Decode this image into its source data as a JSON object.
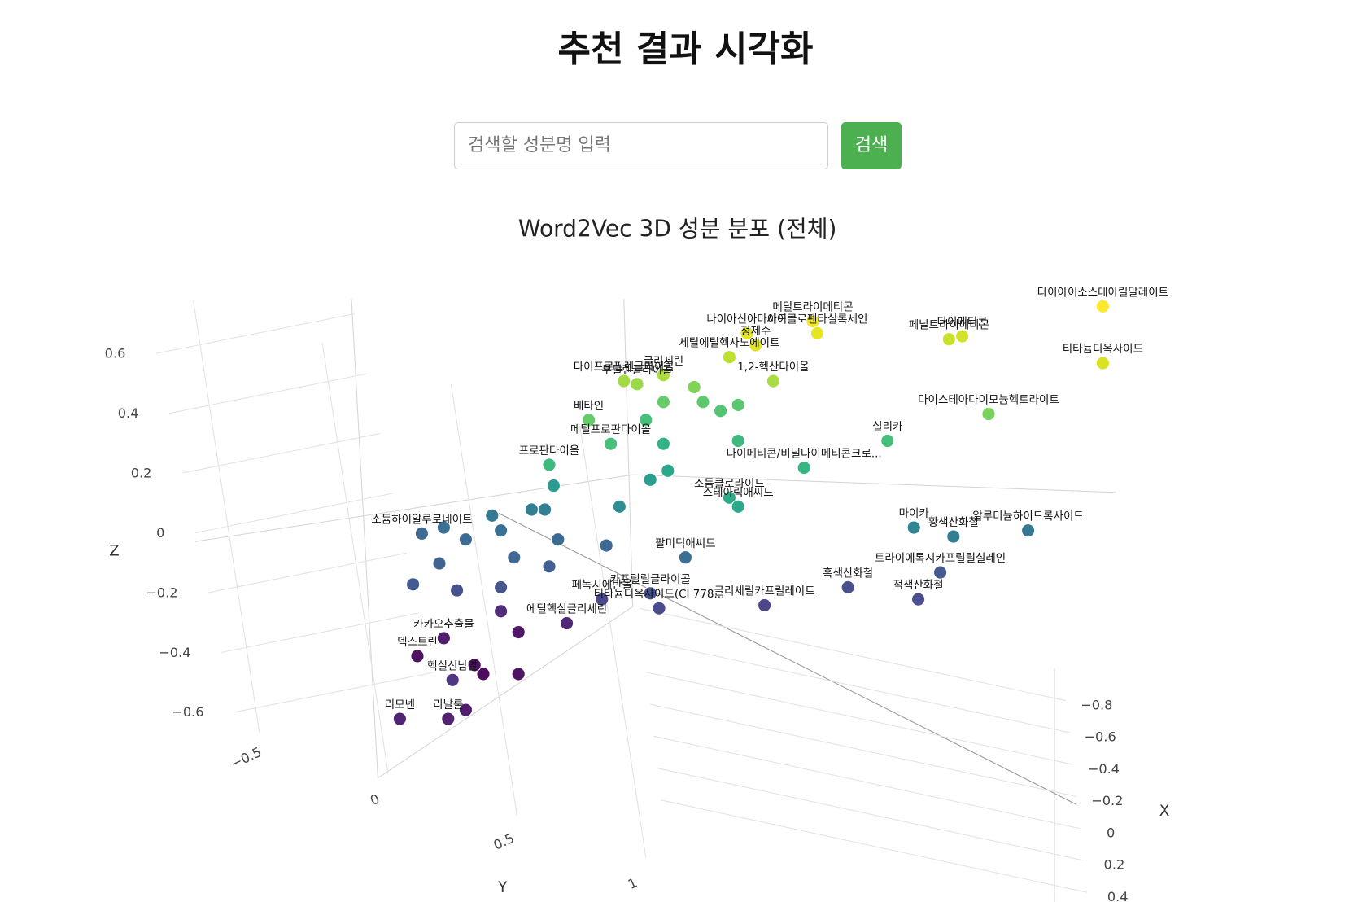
{
  "header": {
    "title": "추천 결과 시각화"
  },
  "search": {
    "placeholder": "검색할 성분명 입력",
    "button": "검색"
  },
  "chart_data": {
    "type": "scatter3d",
    "title": "Word2Vec 3D 성분 분포 (전체)",
    "xlabel": "X",
    "ylabel": "Y",
    "zlabel": "Z",
    "xticks": [
      {
        "value": -0.8,
        "label": "−0.8"
      },
      {
        "value": -0.6,
        "label": "−0.6"
      },
      {
        "value": -0.4,
        "label": "−0.4"
      },
      {
        "value": -0.2,
        "label": "−0.2"
      },
      0,
      0.2,
      0.4
    ],
    "yticks": [
      {
        "value": -0.5,
        "label": "−0.5"
      },
      0,
      0.5,
      1
    ],
    "zticks": [
      {
        "value": -0.6,
        "label": "−0.6"
      },
      {
        "value": -0.4,
        "label": "−0.4"
      },
      {
        "value": -0.2,
        "label": "−0.2"
      },
      0,
      0.2,
      0.4,
      0.6
    ],
    "series": [
      {
        "labels": [
          "다이아이소스테아릴말레이트",
          "티타늄디옥사이드",
          "페닐트라이메티콘",
          "다이메티콘",
          "메틸트라이메티콘",
          "사이클로펜타실록세인",
          "나이아신아마이드",
          "정제수",
          "세틸에틸헥사노에이트",
          "1,2-헥산다이올",
          "글리세린",
          "다이프로필렌글라이콜",
          "부틸렌글라이콜",
          "베타인",
          "다이스테아다이모늄헥토라이트",
          "실리카",
          "메틸프로판다이올",
          "다이메티콘/비닐다이메티콘크로...",
          "프로판다이올",
          "소듐클로라이드",
          "스테아릭애씨드",
          "마이카",
          "황색산화철",
          "알루미늄하이드록사이드",
          "트라이에톡시카프릴릴실레인",
          "흑색산화철",
          "적색산화철",
          "팔미틱애씨드",
          "카프릴릴글라이콜",
          "티타늄디옥사이드(CI 778...",
          "글리세릴카프릴레이트",
          "페녹시에탄올",
          "에틸헥실글리세린",
          "카카오추출물",
          "소듐하이알루로네이트",
          "덱스트린",
          "헥실신남알",
          "리모넨",
          "리날룰"
        ],
        "x": [
          -0.6,
          -0.6,
          -0.6,
          -0.6,
          -0.2,
          -0.2,
          -0.2,
          -0.2,
          -0.2,
          -0.2,
          -0.2,
          -0.2,
          -0.2,
          0.1,
          -0.6,
          -0.6,
          0.1,
          -0.2,
          0.1,
          -0.2,
          -0.2,
          -0.6,
          -0.6,
          -0.6,
          -0.6,
          -0.6,
          -0.6,
          -0.2,
          -0.2,
          -0.2,
          -0.2,
          0.1,
          0.1,
          0.1,
          0.1,
          0.1,
          0.1,
          0.1,
          0.1
        ],
        "y": [
          0.97,
          0.97,
          0.62,
          0.65,
          0.71,
          0.72,
          0.56,
          0.58,
          0.52,
          0.62,
          0.37,
          0.28,
          0.31,
          0.5,
          0.71,
          0.48,
          0.55,
          0.69,
          0.41,
          0.52,
          0.54,
          0.54,
          0.63,
          0.8,
          0.6,
          0.39,
          0.55,
          0.42,
          0.34,
          0.36,
          0.6,
          0.53,
          0.45,
          0.17,
          0.12,
          0.11,
          0.19,
          0.07,
          0.18
        ],
        "z": [
          0.69,
          0.5,
          0.58,
          0.59,
          0.64,
          0.6,
          0.6,
          0.56,
          0.52,
          0.44,
          0.46,
          0.44,
          0.43,
          0.31,
          0.33,
          0.24,
          0.23,
          0.15,
          0.16,
          0.05,
          0.02,
          -0.05,
          -0.08,
          -0.06,
          -0.2,
          -0.25,
          -0.29,
          -0.15,
          -0.27,
          -0.32,
          -0.31,
          -0.29,
          -0.37,
          -0.42,
          -0.07,
          -0.48,
          -0.56,
          -0.69,
          -0.69
        ],
        "colors": [
          "#fde725",
          "#d8e219",
          "#c8e020",
          "#d0e11c",
          "#f1e51d",
          "#e5e419",
          "#e2e418",
          "#dde318",
          "#bddf26",
          "#a5db36",
          "#a8db34",
          "#9fda3a",
          "#95d840",
          "#5ec962",
          "#73d056",
          "#3dbc74",
          "#3fbc73",
          "#2db27d",
          "#35b779",
          "#22a785",
          "#21a585",
          "#27808e",
          "#2a778e",
          "#2c728e",
          "#3b528b",
          "#3f4889",
          "#404588",
          "#31688e",
          "#3e4989",
          "#414487",
          "#433e85",
          "#424186",
          "#481f70",
          "#471365",
          "#33638d",
          "#46075a",
          "#472d7b",
          "#481a6c",
          "#48186a"
        ]
      },
      {
        "x": [
          0.1,
          0.1,
          0.1,
          0.1,
          0.1,
          0.1,
          0.1,
          0.1,
          0.1,
          0.1,
          0.1,
          0.1,
          -0.2,
          -0.2,
          -0.2,
          0.1,
          -0.2,
          -0.2,
          -0.2,
          -0.2,
          -0.2,
          -0.2,
          -0.2,
          -0.2,
          0.1,
          0.1,
          0.1,
          0.1,
          0.1,
          0.1,
          0.1,
          0.1
        ],
        "y": [
          0.17,
          0.22,
          0.3,
          0.37,
          0.4,
          0.43,
          0.33,
          0.41,
          0.3,
          0.2,
          0.16,
          0.54,
          0.27,
          0.34,
          0.38,
          0.42,
          0.37,
          0.5,
          0.54,
          0.46,
          0.33,
          0.44,
          0.37,
          0.54,
          0.34,
          0.34,
          0.26,
          0.22,
          0.3,
          0.24,
          0.1,
          0.28
        ],
        "z": [
          -0.05,
          -0.09,
          -0.06,
          0.01,
          0.01,
          -0.09,
          -0.15,
          -0.18,
          -0.25,
          -0.26,
          -0.17,
          -0.11,
          0.02,
          0.11,
          0.14,
          0.09,
          0.23,
          0.34,
          0.36,
          0.37,
          0.31,
          0.42,
          0.37,
          0.24,
          -0.4,
          -0.54,
          -0.54,
          -0.66,
          -0.33,
          -0.51,
          -0.24,
          -0.01
        ],
        "colors": [
          "#31688e",
          "#33638d",
          "#30698e",
          "#2a788e",
          "#29798e",
          "#32648e",
          "#35608d",
          "#38588c",
          "#3e4c8a",
          "#3e4a89",
          "#375b8d",
          "#34618d",
          "#23888e",
          "#1f9a8a",
          "#20a386",
          "#1f968b",
          "#29af7f",
          "#4ac16d",
          "#52c569",
          "#56c667",
          "#3fbc73",
          "#7ad151",
          "#5ec962",
          "#35b779",
          "#460b5e",
          "#46085c",
          "#440154",
          "#471365",
          "#482173",
          "#450559",
          "#3a538b",
          "#2c728e"
        ]
      }
    ]
  }
}
